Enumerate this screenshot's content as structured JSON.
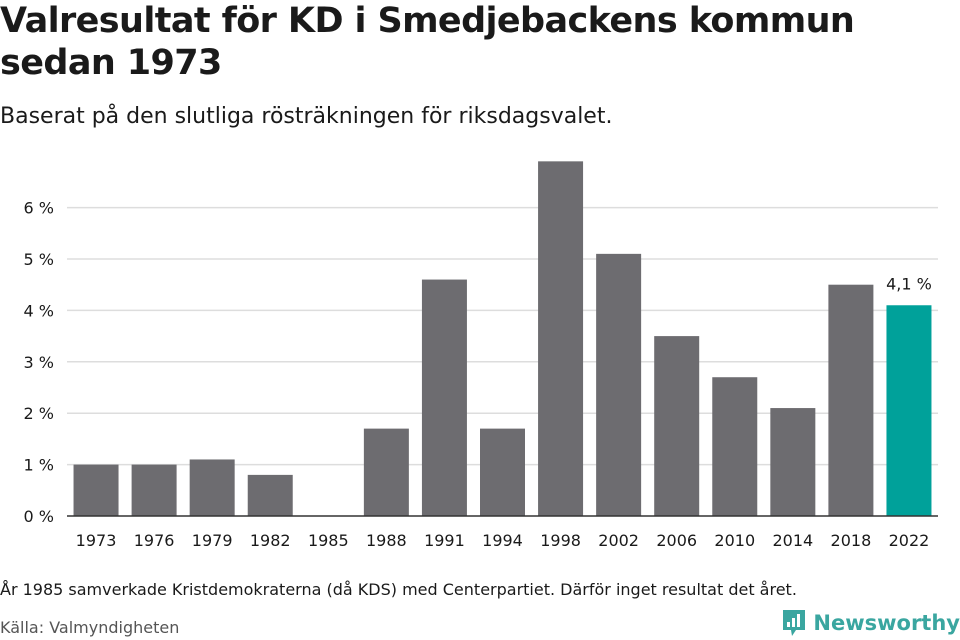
{
  "title": "Valresultat för KD i Smedjebackens kommun sedan 1973",
  "subtitle": "Baserat på den slutliga rösträkningen för riksdagsvalet.",
  "note": "År 1985 samverkade Kristdemokraterna (då KDS) med Centerpartiet. Därför inget resultat det året.",
  "source": "Källa: Valmyndigheten",
  "brand": "Newsworthy",
  "colors": {
    "bar": "#6d6c70",
    "highlight": "#00a19a",
    "grid": "#dddddd",
    "axis": "#333333",
    "text": "#1a1a1a",
    "brand": "#3aa6a0"
  },
  "chart_data": {
    "type": "bar",
    "title": "Valresultat för KD i Smedjebackens kommun sedan 1973",
    "xlabel": "",
    "ylabel": "",
    "categories": [
      "1973",
      "1976",
      "1979",
      "1982",
      "1985",
      "1988",
      "1991",
      "1994",
      "1998",
      "2002",
      "2006",
      "2010",
      "2014",
      "2018",
      "2022"
    ],
    "values": [
      1.0,
      1.0,
      1.1,
      0.8,
      null,
      1.7,
      4.6,
      1.7,
      6.9,
      5.1,
      3.5,
      2.7,
      2.1,
      4.5,
      4.1
    ],
    "highlight_index": 14,
    "highlight_label": "4,1 %",
    "yticks": [
      0,
      1,
      2,
      3,
      4,
      5,
      6
    ],
    "ytick_labels": [
      "0 %",
      "1 %",
      "2 %",
      "3 %",
      "4 %",
      "5 %",
      "6 %"
    ],
    "ylim": [
      0,
      7
    ],
    "grid": true
  }
}
